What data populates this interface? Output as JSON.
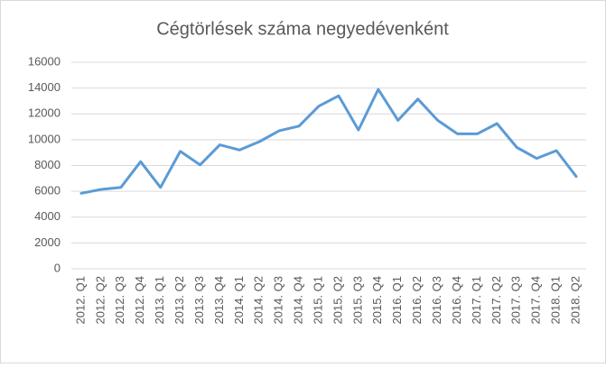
{
  "chart_data": {
    "type": "line",
    "title": "Cégtörlések száma negyedévenként",
    "categories": [
      "2012. Q1",
      "2012. Q2",
      "2012. Q3",
      "2012. Q4",
      "2013. Q1",
      "2013. Q2",
      "2013. Q3",
      "2013. Q4",
      "2014. Q1",
      "2014. Q2",
      "2014. Q3",
      "2014. Q4",
      "2015. Q1",
      "2015. Q2",
      "2015. Q3",
      "2015. Q4",
      "2016. Q1",
      "2016. Q2",
      "2016. Q3",
      "2016. Q4",
      "2017. Q1",
      "2017. Q2",
      "2017. Q3",
      "2017. Q4",
      "2018. Q1",
      "2018. Q2"
    ],
    "values": [
      5850,
      6150,
      6300,
      8300,
      6300,
      9100,
      8050,
      9600,
      9200,
      9850,
      10700,
      11050,
      12600,
      13400,
      10750,
      13900,
      11500,
      13150,
      11500,
      10450,
      10450,
      11250,
      9400,
      8550,
      9150,
      7150
    ],
    "color": "#5b9bd5",
    "ylim": [
      0,
      16000
    ],
    "yticks": [
      0,
      2000,
      4000,
      6000,
      8000,
      10000,
      12000,
      14000,
      16000
    ],
    "grid": true
  }
}
